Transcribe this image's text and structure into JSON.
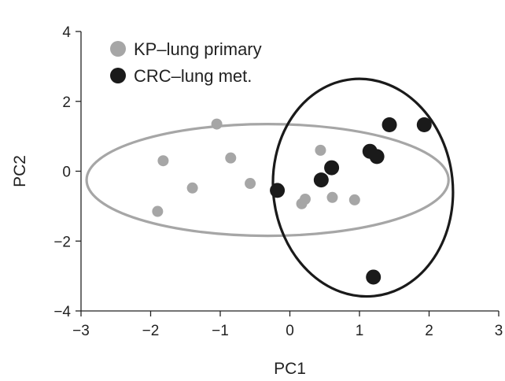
{
  "chart_data": {
    "type": "scatter",
    "xlabel": "PC1",
    "ylabel": "PC2",
    "xlim": [
      -3,
      3
    ],
    "ylim": [
      -4,
      4
    ],
    "x_ticks": [
      -3,
      -2,
      -1,
      0,
      1,
      2,
      3
    ],
    "y_ticks": [
      -4,
      -2,
      0,
      2,
      4
    ],
    "x_tick_labels": [
      "−3",
      "−2",
      "−1",
      "0",
      "1",
      "2",
      "3"
    ],
    "y_tick_labels": [
      "−4",
      "−2",
      "0",
      "2",
      "4"
    ],
    "grid": false,
    "legend_position": "top-left",
    "series": [
      {
        "name": "KP–lung primary",
        "color": "#a6a6a6",
        "points": [
          {
            "x": -1.05,
            "y": 1.35
          },
          {
            "x": -1.82,
            "y": 0.3
          },
          {
            "x": -0.85,
            "y": 0.38
          },
          {
            "x": -1.4,
            "y": -0.48
          },
          {
            "x": -0.57,
            "y": -0.35
          },
          {
            "x": -1.9,
            "y": -1.15
          },
          {
            "x": 0.44,
            "y": 0.6
          },
          {
            "x": 0.17,
            "y": -0.93
          },
          {
            "x": 0.22,
            "y": -0.8
          },
          {
            "x": 0.61,
            "y": -0.75
          },
          {
            "x": 0.93,
            "y": -0.82
          }
        ],
        "ellipse": {
          "cx": -0.32,
          "cy": -0.25,
          "rx": 2.6,
          "ry": 1.6,
          "angle_deg": 0
        }
      },
      {
        "name": "CRC–lung met.",
        "color": "#1a1a1a",
        "points": [
          {
            "x": 1.43,
            "y": 1.33
          },
          {
            "x": 1.93,
            "y": 1.33
          },
          {
            "x": 1.15,
            "y": 0.57
          },
          {
            "x": 1.25,
            "y": 0.42
          },
          {
            "x": 0.6,
            "y": 0.1
          },
          {
            "x": 0.45,
            "y": -0.25
          },
          {
            "x": -0.18,
            "y": -0.55
          },
          {
            "x": 1.2,
            "y": -3.03
          }
        ],
        "ellipse": {
          "cx": 1.05,
          "cy": -0.47,
          "rx": 1.29,
          "ry": 3.12,
          "angle_deg": -6
        }
      }
    ]
  }
}
